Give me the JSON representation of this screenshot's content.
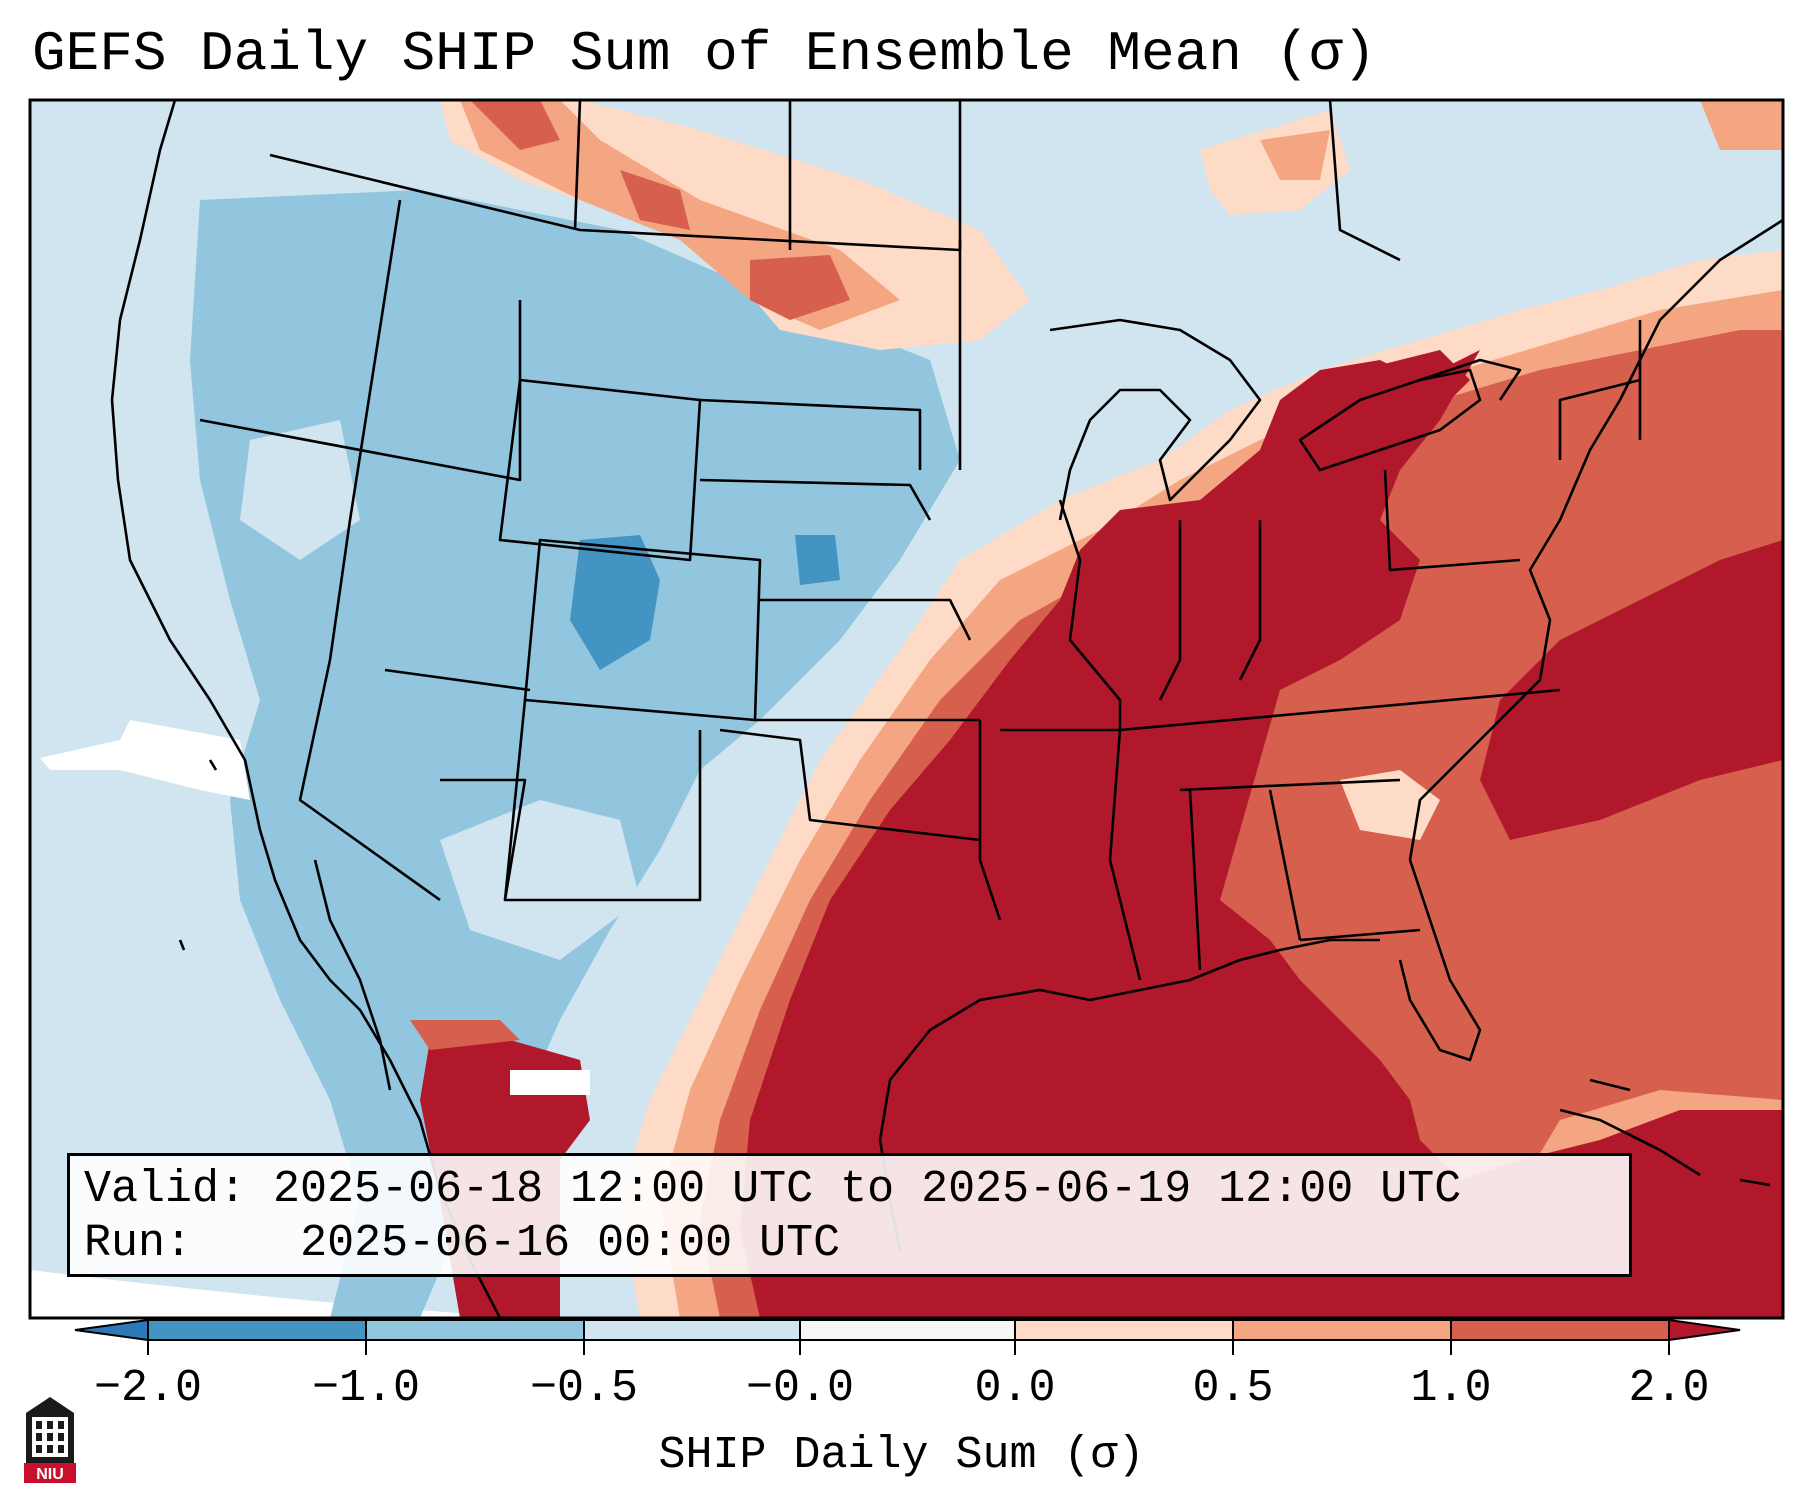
{
  "title": "GEFS Daily SHIP Sum of Ensemble Mean (σ)",
  "info": {
    "valid_label": "Valid:",
    "valid_value": "2025-06-18 12:00 UTC to 2025-06-19 12:00 UTC",
    "run_label": "Run:",
    "run_value": "2025-06-16 00:00 UTC"
  },
  "colorbar": {
    "title": "SHIP Daily Sum (σ)",
    "ticks": [
      "−2.0",
      "−1.0",
      "−0.5",
      "−0.0",
      "0.0",
      "0.5",
      "1.0",
      "2.0"
    ],
    "bins": [
      {
        "from": "<-2.0",
        "color": "#2c78b8"
      },
      {
        "from": "-2.0 to -1.0",
        "color": "#4393c3"
      },
      {
        "from": "-1.0 to -0.5",
        "color": "#92c5de"
      },
      {
        "from": "-0.5 to -0.0",
        "color": "#d1e5f0"
      },
      {
        "from": "-0.0 to 0.0",
        "color": "#f7f7f7"
      },
      {
        "from": "0.0 to 0.5",
        "color": "#fddbc7"
      },
      {
        "from": "0.5 to 1.0",
        "color": "#f4a582"
      },
      {
        "from": "1.0 to 2.0",
        "color": "#d6604d"
      },
      {
        "from": ">2.0",
        "color": "#b2182b"
      }
    ]
  },
  "logo": {
    "text": "NIU"
  },
  "colors": {
    "neg_strong": "#4393c3",
    "neg_mid": "#92c5de",
    "neg_weak": "#d1e5f0",
    "neutral": "#f7f7f7",
    "pos_weak": "#fddbc7",
    "pos_mid": "#f4a582",
    "pos_strong": "#d6604d",
    "pos_extreme": "#b2182b"
  }
}
